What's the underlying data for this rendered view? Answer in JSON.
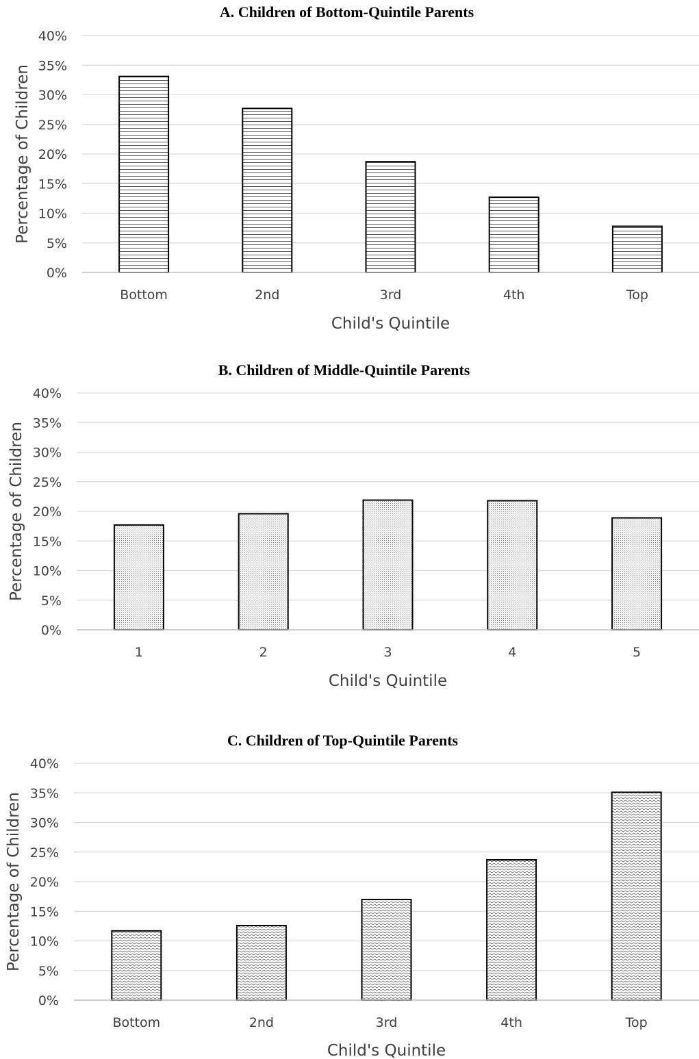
{
  "chart_data": [
    {
      "type": "bar",
      "title": "A. Children of Bottom-Quintile Parents",
      "xlabel": "Child's Quintile",
      "ylabel": "Percentage of Children",
      "categories": [
        "Bottom",
        "2nd",
        "3rd",
        "4th",
        "Top"
      ],
      "values": [
        33.1,
        27.7,
        18.7,
        12.7,
        7.8
      ],
      "ylim": [
        0,
        40
      ],
      "yticks": [
        "0%",
        "5%",
        "10%",
        "15%",
        "20%",
        "25%",
        "30%",
        "35%",
        "40%"
      ],
      "grid": true,
      "fill_pattern": "horizontal-lines"
    },
    {
      "type": "bar",
      "title": "B. Children of Middle-Quintile Parents",
      "xlabel": "Child's Quintile",
      "ylabel": "Percentage of Children",
      "categories": [
        "1",
        "2",
        "3",
        "4",
        "5"
      ],
      "values": [
        17.7,
        19.6,
        21.9,
        21.8,
        18.9
      ],
      "ylim": [
        0,
        40
      ],
      "yticks": [
        "0%",
        "5%",
        "10%",
        "15%",
        "20%",
        "25%",
        "30%",
        "35%",
        "40%"
      ],
      "grid": true,
      "fill_pattern": "dots"
    },
    {
      "type": "bar",
      "title": "C. Children of Top-Quintile Parents",
      "xlabel": "Child's Quintile",
      "ylabel": "Percentage of Children",
      "categories": [
        "Bottom",
        "2nd",
        "3rd",
        "4th",
        "Top"
      ],
      "values": [
        11.7,
        12.6,
        17.0,
        23.7,
        35.1
      ],
      "ylim": [
        0,
        40
      ],
      "yticks": [
        "0%",
        "5%",
        "10%",
        "15%",
        "20%",
        "25%",
        "30%",
        "35%",
        "40%"
      ],
      "grid": true,
      "fill_pattern": "waves"
    }
  ]
}
